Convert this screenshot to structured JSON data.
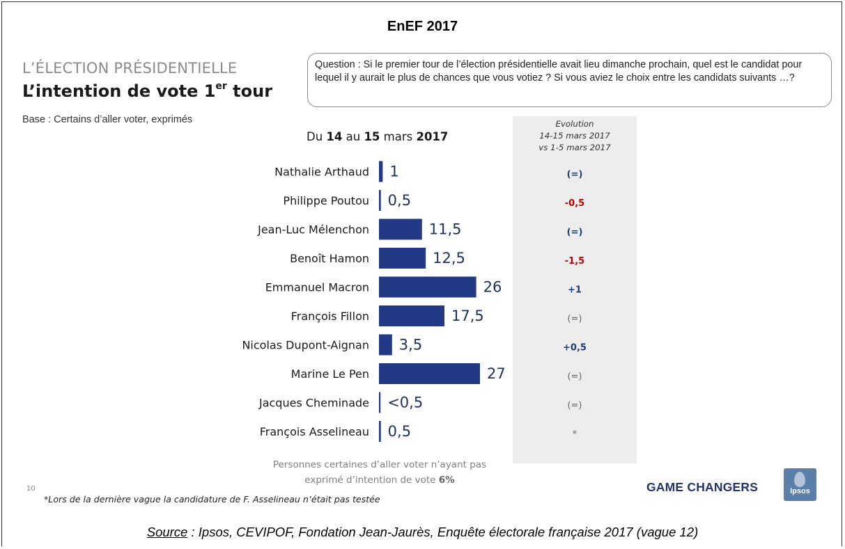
{
  "header": {
    "title": "EnEF 2017",
    "kicker": "L’ÉLECTION PRÉSIDENTIELLE",
    "headline_main": "L’intention de vote 1",
    "headline_sup": "er",
    "headline_tail": " tour",
    "base": "Base : Certains d’aller voter, exprimés"
  },
  "question": "Question : Si le premier tour de l’élection présidentielle avait lieu dimanche prochain, quel est le candidat pour lequel il y aurait le plus de chances que vous votiez ?  Si vous aviez le choix entre les candidats suivants …?",
  "period": {
    "prefix": "Du ",
    "d1": "14",
    "mid": " au ",
    "d2": "15",
    "month": " mars ",
    "year": "2017"
  },
  "evolution_header": {
    "line1": "Evolution",
    "line2": "14-15 mars 2017",
    "line3": "vs 1-5 mars 2017"
  },
  "colors": {
    "bar": "#223a86",
    "negative": "#c00000",
    "neutral": "#666666",
    "positive": "#1f3b73"
  },
  "chart_data": {
    "type": "bar",
    "orientation": "horizontal",
    "categories": [
      "Nathalie Arthaud",
      "Philippe Poutou",
      "Jean-Luc Mélenchon",
      "Benoît Hamon",
      "Emmanuel Macron",
      "François Fillon",
      "Nicolas Dupont-Aignan",
      "Marine Le Pen",
      "Jacques Cheminade",
      "François Asselineau"
    ],
    "values": [
      1,
      0.5,
      11.5,
      12.5,
      26,
      17.5,
      3.5,
      27,
      0.3,
      0.5
    ],
    "value_labels": [
      "1",
      "0,5",
      "11,5",
      "12,5",
      "26",
      "17,5",
      "3,5",
      "27",
      "<0,5",
      "0,5"
    ],
    "evolution": [
      {
        "text": "(=)",
        "tone": "positive"
      },
      {
        "text": "-0,5",
        "tone": "negative"
      },
      {
        "text": "(=)",
        "tone": "positive"
      },
      {
        "text": "-1,5",
        "tone": "negative"
      },
      {
        "text": "+1",
        "tone": "positive"
      },
      {
        "text": "(=)",
        "tone": "neutral"
      },
      {
        "text": "+0,5",
        "tone": "positive"
      },
      {
        "text": "(=)",
        "tone": "neutral"
      },
      {
        "text": "(=)",
        "tone": "neutral"
      },
      {
        "text": "*",
        "tone": "neutral"
      }
    ],
    "xlim": [
      0,
      27
    ]
  },
  "note": {
    "line1": "Personnes certaines d’aller voter n’ayant pas",
    "line2_prefix": "exprimé d’intention de vote ",
    "line2_value": "6%"
  },
  "page_number": "10",
  "footnote": "*Lors de la dernière vague la candidature de F. Asselineau n’était pas testée",
  "brand": "GAME CHANGERS",
  "logo_text": "Ipsos",
  "source": {
    "label": "Source",
    "text": " : Ipsos, CEVIPOF, Fondation Jean-Jaurès, Enquête électorale française 2017 (vague 12)"
  }
}
